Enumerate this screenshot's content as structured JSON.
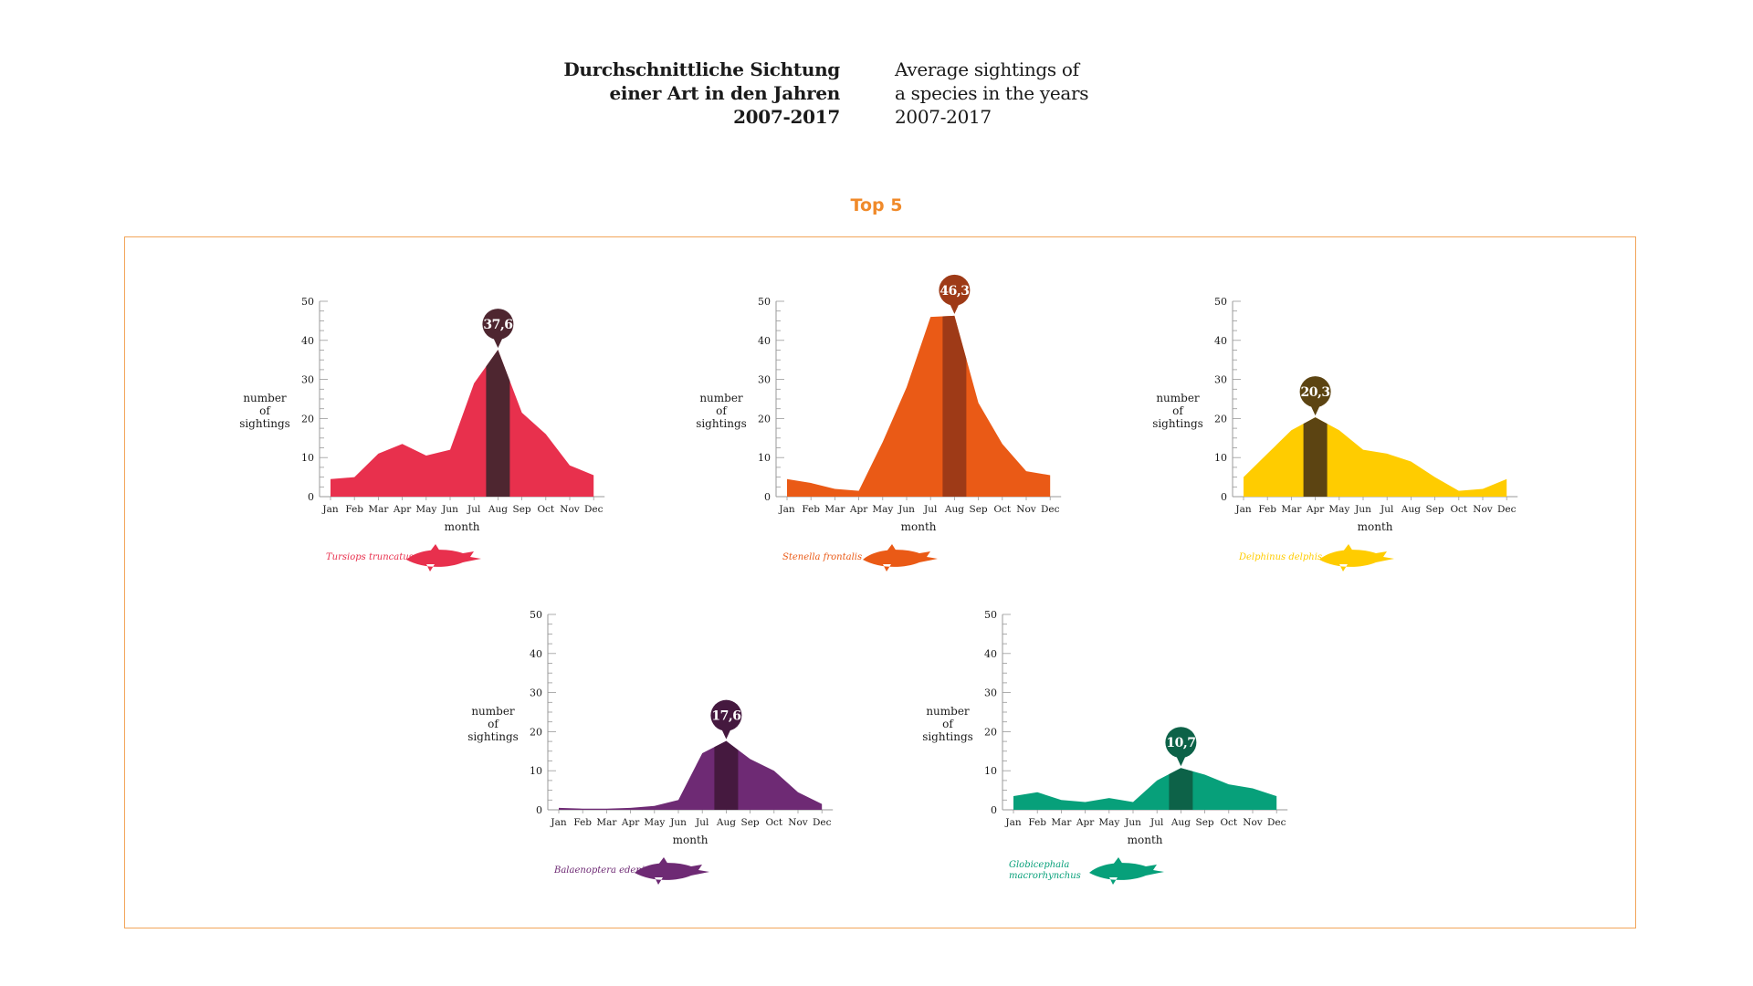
{
  "header": {
    "title_de": "Durchschnittliche Sichtung\neiner Art in den Jahren\n2007-2017",
    "title_en": "Average sightings of\na species in the years\n2007-2017"
  },
  "section": {
    "title": "Top 5"
  },
  "colors": {
    "accent": "#f08a2a",
    "frame": "#f2a55a"
  },
  "chart_data": [
    {
      "type": "area",
      "species": "Tursiops truncatus",
      "color": "#e8304d",
      "highlight_color": "#4e2630",
      "categories": [
        "Jan",
        "Feb",
        "Mar",
        "Apr",
        "May",
        "Jun",
        "Jul",
        "Aug",
        "Sep",
        "Oct",
        "Nov",
        "Dec"
      ],
      "values": [
        4.5,
        5,
        11,
        13.5,
        10.5,
        12,
        29,
        37.6,
        21.5,
        16,
        8,
        5.5
      ],
      "highlight": {
        "category": "Aug",
        "label": "37,6"
      },
      "xlabel": "month",
      "ylabel": "number\nof\nsightings",
      "ylim": [
        0,
        50
      ],
      "yticks": [
        0,
        10,
        20,
        30,
        40,
        50
      ]
    },
    {
      "type": "area",
      "species": "Stenella frontalis",
      "color": "#ea5a16",
      "highlight_color": "#9e3a17",
      "categories": [
        "Jan",
        "Feb",
        "Mar",
        "Apr",
        "May",
        "Jun",
        "Jul",
        "Aug",
        "Sep",
        "Oct",
        "Nov",
        "Dec"
      ],
      "values": [
        4.5,
        3.5,
        2,
        1.5,
        14,
        28,
        46,
        46.3,
        24,
        13.5,
        6.5,
        5.5
      ],
      "highlight": {
        "category": "Aug",
        "label": "46,3"
      },
      "xlabel": "month",
      "ylabel": "number\nof\nsightings",
      "ylim": [
        0,
        50
      ],
      "yticks": [
        0,
        10,
        20,
        30,
        40,
        50
      ]
    },
    {
      "type": "area",
      "species": "Delphinus delphis",
      "color": "#ffcc00",
      "highlight_color": "#5c4412",
      "categories": [
        "Jan",
        "Feb",
        "Mar",
        "Apr",
        "May",
        "Jun",
        "Jul",
        "Aug",
        "Sep",
        "Oct",
        "Nov",
        "Dec"
      ],
      "values": [
        5,
        11,
        17,
        20.3,
        17,
        12,
        11,
        9,
        5,
        1.5,
        2,
        4.5
      ],
      "highlight": {
        "category": "Apr",
        "label": "20,3"
      },
      "xlabel": "month",
      "ylabel": "number\nof\nsightings",
      "ylim": [
        0,
        50
      ],
      "yticks": [
        0,
        10,
        20,
        30,
        40,
        50
      ]
    },
    {
      "type": "area",
      "species": "Balaenoptera edeni",
      "color": "#6e2a74",
      "highlight_color": "#45193f",
      "categories": [
        "Jan",
        "Feb",
        "Mar",
        "Apr",
        "May",
        "Jun",
        "Jul",
        "Aug",
        "Sep",
        "Oct",
        "Nov",
        "Dec"
      ],
      "values": [
        0.5,
        0.3,
        0.3,
        0.5,
        1,
        2.5,
        14.5,
        17.6,
        13,
        10,
        4.5,
        1.5
      ],
      "highlight": {
        "category": "Aug",
        "label": "17,6"
      },
      "xlabel": "month",
      "ylabel": "number\nof\nsightings",
      "ylim": [
        0,
        50
      ],
      "yticks": [
        0,
        10,
        20,
        30,
        40,
        50
      ]
    },
    {
      "type": "area",
      "species": "Globicephala macrorhynchus",
      "color": "#07a07a",
      "highlight_color": "#0d6248",
      "categories": [
        "Jan",
        "Feb",
        "Mar",
        "Apr",
        "May",
        "Jun",
        "Jul",
        "Aug",
        "Sep",
        "Oct",
        "Nov",
        "Dec"
      ],
      "values": [
        3.5,
        4.5,
        2.5,
        2,
        3,
        2,
        7.5,
        10.7,
        9,
        6.5,
        5.5,
        3.5
      ],
      "highlight": {
        "category": "Aug",
        "label": "10,7"
      },
      "xlabel": "month",
      "ylabel": "number\nof\nsightings",
      "ylim": [
        0,
        50
      ],
      "yticks": [
        0,
        10,
        20,
        30,
        40,
        50
      ]
    }
  ]
}
